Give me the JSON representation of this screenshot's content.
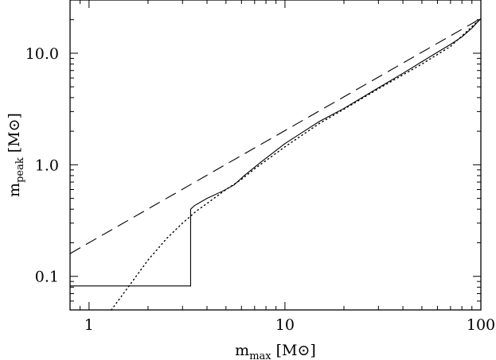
{
  "chart_data": {
    "type": "line",
    "title": "",
    "x_scale": "log",
    "y_scale": "log",
    "xlim": [
      0.8,
      100
    ],
    "ylim": [
      0.05,
      30
    ],
    "grid": false,
    "legend": "none",
    "xlabel": {
      "main": "m",
      "sub": "max",
      "unit": "[M⊙]"
    },
    "ylabel": {
      "main": "m",
      "sub": "peak",
      "unit": "[M⊙]"
    },
    "x_ticks": [
      {
        "value": 1,
        "label": "1"
      },
      {
        "value": 10,
        "label": "10"
      },
      {
        "value": 100,
        "label": "100"
      }
    ],
    "y_ticks": [
      {
        "value": 0.1,
        "label": "0.1"
      },
      {
        "value": 1.0,
        "label": "1.0"
      },
      {
        "value": 10.0,
        "label": "10.0"
      }
    ],
    "series": [
      {
        "style": "solid",
        "x": [
          0.8,
          3.3,
          3.3,
          3.45,
          4.0,
          4.8,
          5.5,
          6.2,
          7.5,
          10,
          15,
          20,
          30,
          40,
          50,
          60,
          70,
          80,
          90,
          100
        ],
        "y": [
          0.082,
          0.082,
          0.4,
          0.43,
          0.5,
          0.58,
          0.66,
          0.8,
          1.05,
          1.55,
          2.45,
          3.2,
          4.9,
          6.6,
          8.4,
          10.2,
          12.0,
          14.0,
          16.8,
          20.5
        ]
      },
      {
        "style": "dashed",
        "x": [
          0.8,
          100
        ],
        "y": [
          0.16,
          20.5
        ]
      },
      {
        "style": "dotted",
        "x": [
          1.3,
          1.6,
          2.0,
          2.5,
          3.0,
          3.5,
          4.0,
          5.0,
          6.0,
          7.0,
          10,
          15,
          20,
          30,
          50,
          70,
          100
        ],
        "y": [
          0.05,
          0.082,
          0.14,
          0.22,
          0.3,
          0.38,
          0.45,
          0.6,
          0.74,
          0.92,
          1.45,
          2.35,
          3.15,
          4.8,
          8.0,
          11.5,
          20.5
        ]
      }
    ]
  }
}
